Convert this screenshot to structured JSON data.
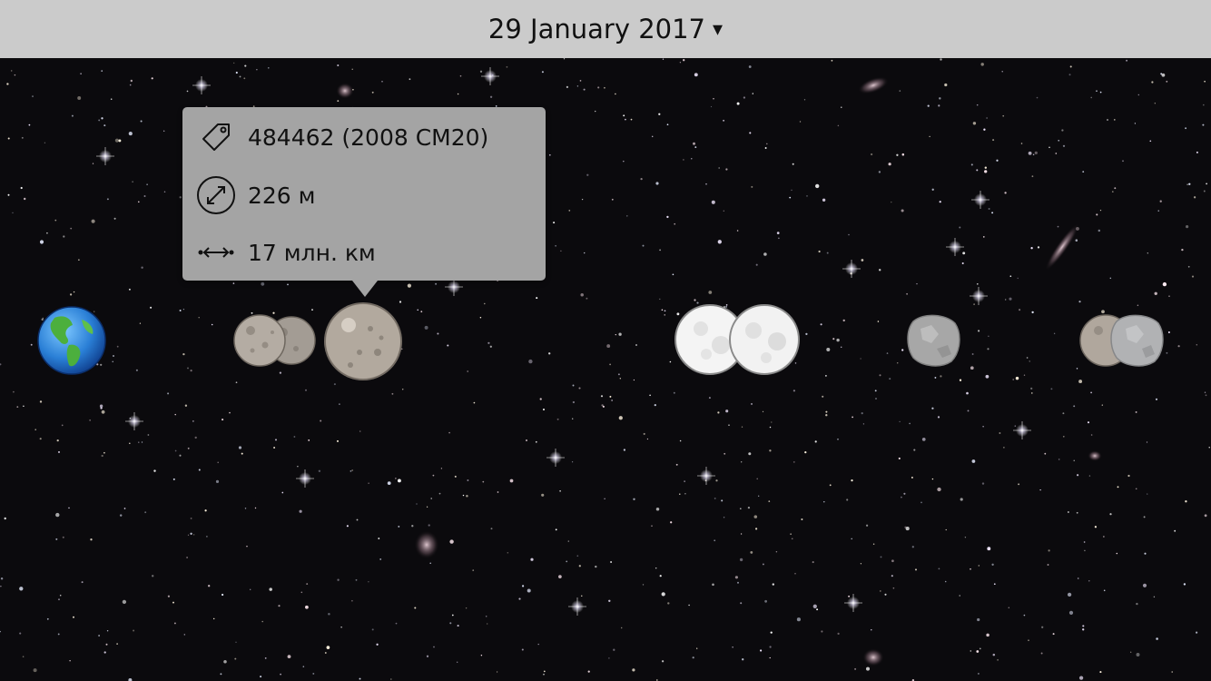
{
  "header": {
    "date_label": "29 January 2017",
    "dropdown_caret": "▾"
  },
  "popup": {
    "name": "484462 (2008 CM20)",
    "diameter": "226 м",
    "distance": "17 млн. км",
    "icons": [
      "tag-icon",
      "diameter-icon",
      "distance-icon"
    ]
  },
  "objects": [
    {
      "type": "planet",
      "icon": "earth-icon"
    },
    {
      "type": "asteroid",
      "icon": "asteroid-icon"
    },
    {
      "type": "asteroid",
      "icon": "asteroid-icon"
    },
    {
      "type": "asteroid",
      "icon": "asteroid-icon",
      "selected": true
    },
    {
      "type": "moon",
      "icon": "moon-icon"
    },
    {
      "type": "moon",
      "icon": "moon-icon"
    },
    {
      "type": "asteroid",
      "icon": "rock-icon"
    },
    {
      "type": "asteroid",
      "icon": "asteroid-icon"
    },
    {
      "type": "asteroid",
      "icon": "rock-icon"
    }
  ],
  "colors": {
    "header_bg": "#cbcbcb",
    "popup_bg": "#a4a4a4",
    "sky_bg": "#0b0a0d"
  }
}
